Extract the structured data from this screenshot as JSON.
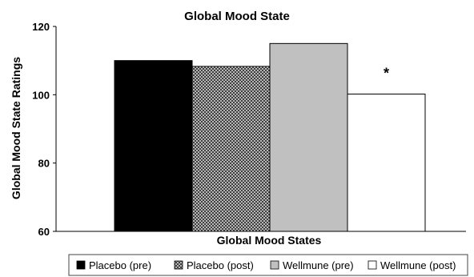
{
  "chart_data": {
    "type": "bar",
    "title": "Global Mood State",
    "xlabel": "Global Mood States",
    "ylabel": "Global Mood State Ratings",
    "ylim": [
      60,
      120
    ],
    "yticks": [
      "60",
      "80",
      "100",
      "120"
    ],
    "grid": false,
    "legend_position": "bottom",
    "categories": [
      ""
    ],
    "series": [
      {
        "name": "Placebo (pre)",
        "values": [
          110
        ],
        "color": "#000000",
        "pattern": "solid"
      },
      {
        "name": "Placebo (post)",
        "values": [
          108.3
        ],
        "color": "#ffffff",
        "pattern": "crosshatch"
      },
      {
        "name": "Wellmune (pre)",
        "values": [
          115
        ],
        "color": "#c0c0c0",
        "pattern": "solid"
      },
      {
        "name": "Wellmune (post)",
        "values": [
          100.2
        ],
        "color": "#ffffff",
        "pattern": "solid"
      }
    ],
    "annotations": [
      {
        "text": "*",
        "series": "Wellmune (post)"
      }
    ]
  }
}
